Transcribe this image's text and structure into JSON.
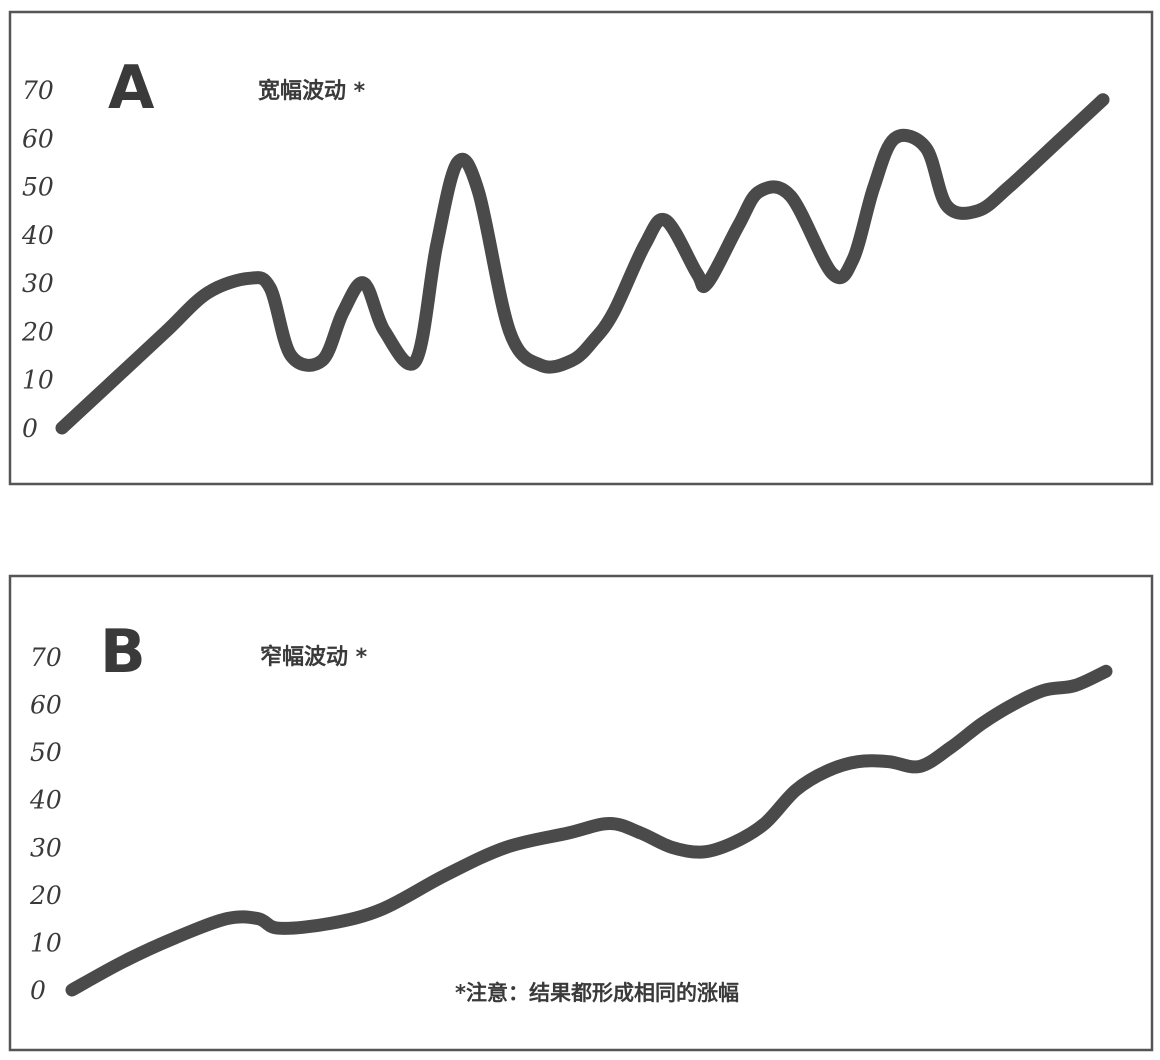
{
  "chart_data": [
    {
      "type": "line",
      "panel_label": "A",
      "subtitle": "宽幅波动 *",
      "note": "",
      "yticks": [
        "0",
        "10",
        "20",
        "30",
        "40",
        "50",
        "60",
        "70"
      ],
      "ylim": [
        0,
        70
      ],
      "xlim": [
        0,
        100
      ],
      "grid": false,
      "series": [
        {
          "x": [
            0,
            5,
            10,
            14,
            18,
            20,
            22,
            25,
            27,
            29,
            31,
            34,
            36,
            38,
            40,
            43,
            46,
            49,
            51,
            53,
            56,
            58,
            61,
            62,
            65,
            67,
            70,
            74,
            76,
            78,
            80,
            83,
            85,
            88,
            91,
            96,
            100
          ],
          "values": [
            0,
            10,
            20,
            28,
            31,
            29,
            15,
            14,
            24,
            30,
            20,
            14,
            38,
            55,
            49,
            20,
            13,
            14,
            18,
            24,
            38,
            43,
            32,
            30,
            42,
            49,
            48,
            32,
            35,
            50,
            60,
            58,
            46,
            45,
            50,
            60,
            68
          ]
        }
      ]
    },
    {
      "type": "line",
      "panel_label": "B",
      "subtitle": "窄幅波动 *",
      "note": "*注意：结果都形成相同的涨幅",
      "yticks": [
        "0",
        "10",
        "20",
        "30",
        "40",
        "50",
        "60",
        "70"
      ],
      "ylim": [
        0,
        70
      ],
      "xlim": [
        0,
        100
      ],
      "grid": false,
      "series": [
        {
          "x": [
            0,
            5,
            10,
            15,
            18,
            20,
            25,
            30,
            36,
            42,
            48,
            52,
            55,
            58,
            61,
            64,
            67,
            70,
            73,
            76,
            79,
            82,
            85,
            88,
            91,
            94,
            97,
            100
          ],
          "values": [
            0,
            6,
            11,
            15,
            15,
            13,
            14,
            17,
            24,
            30,
            33,
            35,
            33,
            30,
            29,
            31,
            35,
            42,
            46,
            48,
            48,
            47,
            51,
            56,
            60,
            63,
            64,
            67
          ]
        }
      ]
    }
  ]
}
